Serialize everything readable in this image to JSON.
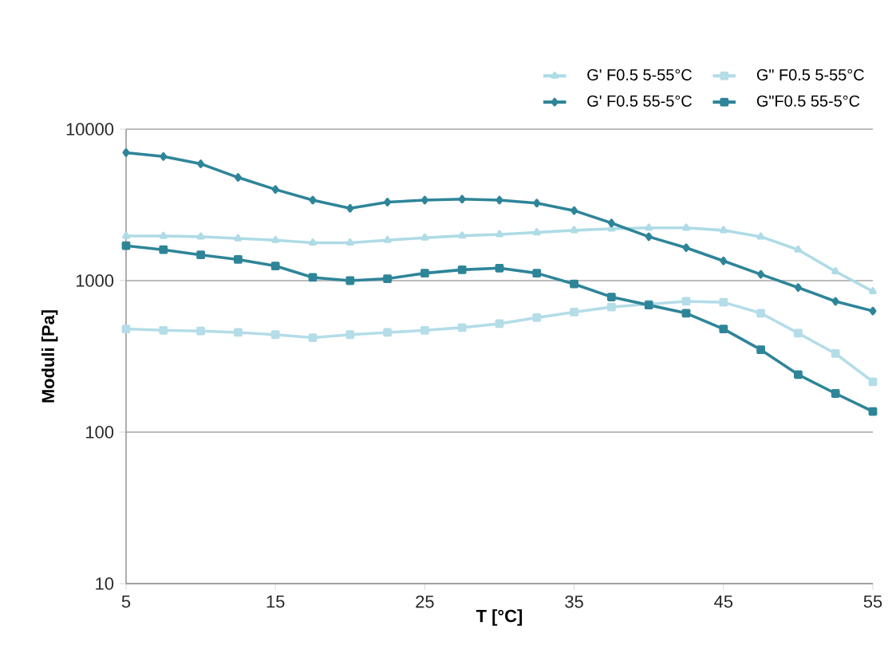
{
  "chart_data": {
    "type": "line",
    "xlabel": "T [°C]",
    "ylabel": "Moduli [Pa]",
    "x": [
      5,
      7.5,
      10,
      12.5,
      15,
      17.5,
      20,
      22.5,
      25,
      27.5,
      30,
      32.5,
      35,
      37.5,
      40,
      42.5,
      45,
      47.5,
      50,
      52.5,
      55
    ],
    "series": [
      {
        "name": "G' F0.5 5-55°C",
        "color": "#aedbe6",
        "marker": "triangle",
        "values": [
          1970,
          1970,
          1950,
          1900,
          1850,
          1780,
          1780,
          1850,
          1920,
          1980,
          2020,
          2080,
          2150,
          2200,
          2230,
          2230,
          2150,
          1950,
          1600,
          1150,
          850
        ]
      },
      {
        "name": "G\" F0.5 5-55°C",
        "color": "#b4dde8",
        "marker": "square",
        "values": [
          480,
          470,
          465,
          455,
          440,
          420,
          440,
          455,
          470,
          490,
          520,
          570,
          620,
          670,
          700,
          730,
          720,
          610,
          450,
          330,
          215
        ]
      },
      {
        "name": "G' F0.5 55-5°C",
        "color": "#2e8598",
        "marker": "diamond",
        "values": [
          7000,
          6600,
          5900,
          4800,
          4000,
          3400,
          3000,
          3300,
          3400,
          3450,
          3400,
          3250,
          2900,
          2400,
          1950,
          1650,
          1350,
          1100,
          900,
          730,
          630
        ]
      },
      {
        "name": "G\"F0.5 55-5°C",
        "color": "#2e8598",
        "marker": "square",
        "values": [
          1700,
          1600,
          1480,
          1380,
          1250,
          1050,
          1000,
          1030,
          1120,
          1180,
          1210,
          1120,
          950,
          780,
          690,
          610,
          480,
          350,
          240,
          180,
          137
        ]
      }
    ],
    "xlim": [
      5,
      55
    ],
    "xticks": [
      5,
      15,
      25,
      35,
      45,
      55
    ],
    "ylim": [
      10,
      10000
    ],
    "yticks": [
      10,
      100,
      1000,
      10000
    ],
    "log": "y",
    "grid": "y",
    "legend": "top right",
    "line_style": "solid"
  }
}
